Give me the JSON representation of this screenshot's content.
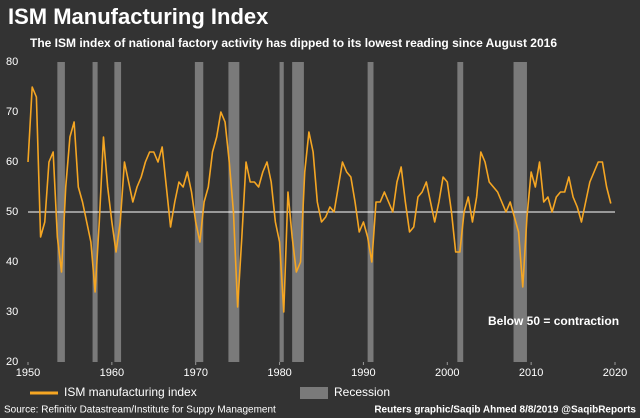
{
  "chart_data": {
    "type": "line",
    "title": "ISM Manufacturing Index",
    "subtitle": "The ISM index of national factory activity has dipped to its lowest reading since August 2016",
    "series": [
      {
        "name": "ISM manufacturing index",
        "color": "#f5a623",
        "x": [
          1950,
          1950.5,
          1951,
          1951.5,
          1952,
          1952.5,
          1953,
          1953.5,
          1954,
          1954.5,
          1955,
          1955.5,
          1956,
          1956.5,
          1957,
          1957.5,
          1958,
          1958.5,
          1959,
          1959.5,
          1960,
          1960.5,
          1961,
          1961.5,
          1962,
          1962.5,
          1963,
          1963.5,
          1964,
          1964.5,
          1965,
          1965.5,
          1966,
          1966.5,
          1967,
          1967.5,
          1968,
          1968.5,
          1969,
          1969.5,
          1970,
          1970.5,
          1971,
          1971.5,
          1972,
          1972.5,
          1973,
          1973.5,
          1974,
          1974.5,
          1975,
          1975.5,
          1976,
          1976.5,
          1977,
          1977.5,
          1978,
          1978.5,
          1979,
          1979.5,
          1980,
          1980.5,
          1981,
          1981.5,
          1982,
          1982.5,
          1983,
          1983.5,
          1984,
          1984.5,
          1985,
          1985.5,
          1986,
          1986.5,
          1987,
          1987.5,
          1988,
          1988.5,
          1989,
          1989.5,
          1990,
          1990.5,
          1991,
          1991.5,
          1992,
          1992.5,
          1993,
          1993.5,
          1994,
          1994.5,
          1995,
          1995.5,
          1996,
          1996.5,
          1997,
          1997.5,
          1998,
          1998.5,
          1999,
          1999.5,
          2000,
          2000.5,
          2001,
          2001.5,
          2002,
          2002.5,
          2003,
          2003.5,
          2004,
          2004.5,
          2005,
          2005.5,
          2006,
          2006.5,
          2007,
          2007.5,
          2008,
          2008.5,
          2009,
          2009.5,
          2010,
          2010.5,
          2011,
          2011.5,
          2012,
          2012.5,
          2013,
          2013.5,
          2014,
          2014.5,
          2015,
          2015.5,
          2016,
          2016.5,
          2017,
          2017.5,
          2018,
          2018.5,
          2019,
          2019.5
        ],
        "values": [
          60,
          75,
          73,
          45,
          48,
          60,
          62,
          45,
          38,
          55,
          65,
          68,
          55,
          52,
          48,
          44,
          34,
          48,
          65,
          55,
          48,
          42,
          48,
          60,
          56,
          52,
          55,
          57,
          60,
          62,
          62,
          60,
          63,
          55,
          47,
          52,
          56,
          55,
          58,
          54,
          48,
          44,
          52,
          55,
          62,
          65,
          70,
          68,
          60,
          50,
          31,
          45,
          60,
          56,
          56,
          55,
          58,
          60,
          56,
          48,
          44,
          30,
          54,
          45,
          38,
          40,
          58,
          66,
          62,
          52,
          48,
          49,
          51,
          50,
          55,
          60,
          58,
          57,
          52,
          46,
          48,
          45,
          40,
          52,
          52,
          54,
          52,
          50,
          56,
          59,
          52,
          46,
          47,
          53,
          54,
          56,
          52,
          48,
          52,
          57,
          56,
          50,
          42,
          42,
          50,
          53,
          48,
          53,
          62,
          60,
          56,
          55,
          54,
          52,
          50,
          52,
          49,
          46,
          35,
          49,
          58,
          55,
          60,
          52,
          53,
          50,
          53,
          54,
          54,
          57,
          53,
          51,
          48,
          52,
          56,
          58,
          60,
          60,
          55,
          51.7
        ]
      }
    ],
    "recessions": [
      [
        1953.5,
        1954.4
      ],
      [
        1957.7,
        1958.3
      ],
      [
        1960.3,
        1961.1
      ],
      [
        1969.9,
        1970.9
      ],
      [
        1973.9,
        1975.2
      ],
      [
        1980.0,
        1980.5
      ],
      [
        1981.5,
        1982.9
      ],
      [
        1990.5,
        1991.2
      ],
      [
        2001.2,
        2001.9
      ],
      [
        2007.9,
        2009.5
      ]
    ],
    "recession_label": "Recession",
    "recession_color": "#7a7a7a",
    "reference_line": 50,
    "annotation": "Below 50 = contraction",
    "xlim": [
      1950,
      2020
    ],
    "xticks": [
      1950,
      1960,
      1970,
      1980,
      1990,
      2000,
      2010,
      2020
    ],
    "ylim": [
      20,
      80
    ],
    "yticks": [
      20,
      30,
      40,
      50,
      60,
      70,
      80
    ],
    "source": "Source: Refinitiv Datastream/Institute for Suppy Management",
    "credit": "Reuters graphic/Saqib Ahmed 8/8/2019 @SaqibReports"
  }
}
